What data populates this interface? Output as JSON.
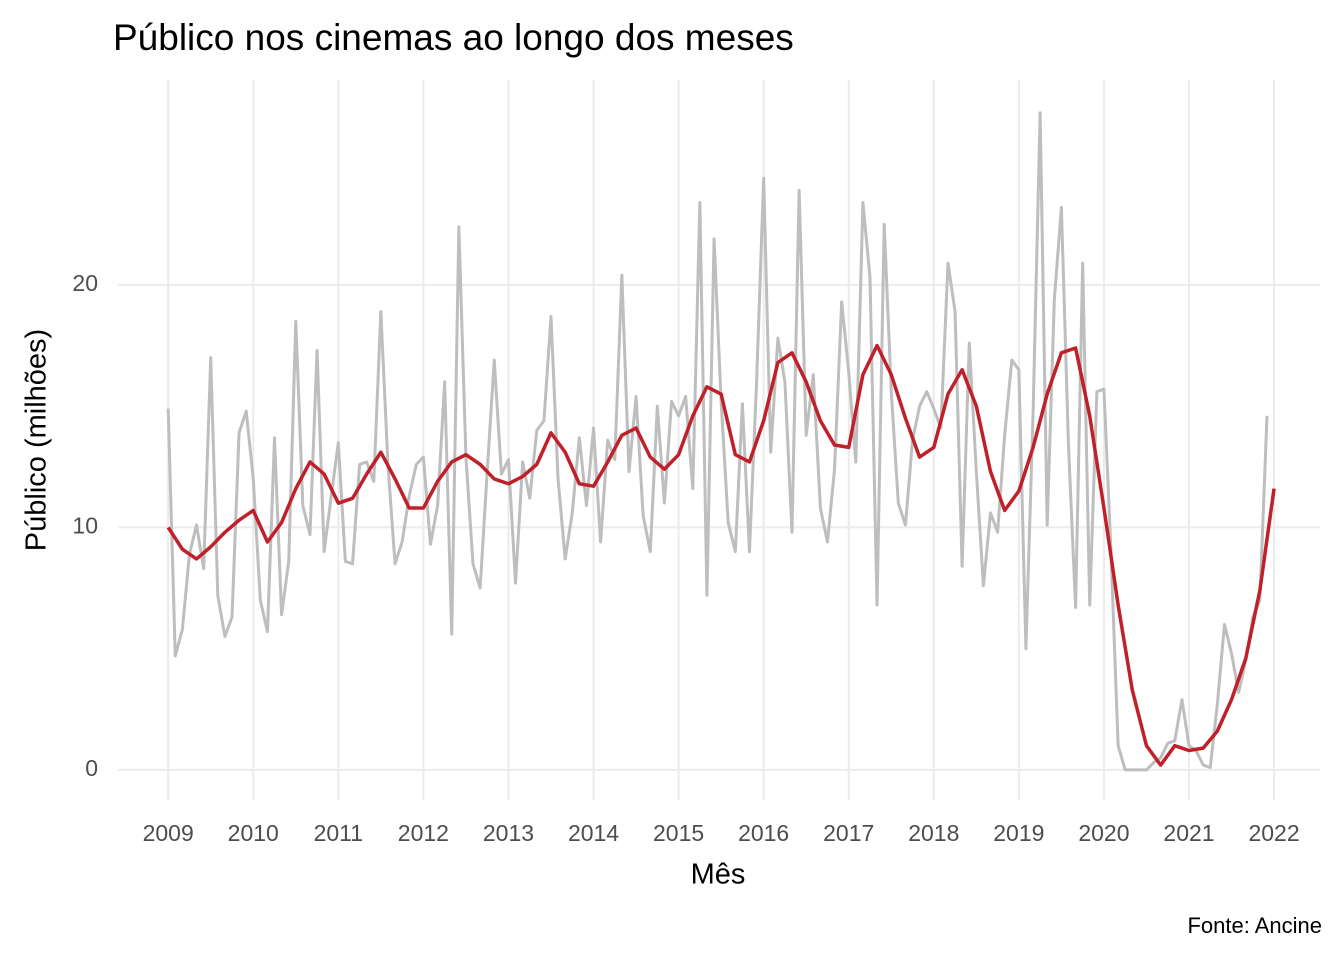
{
  "chart_data": {
    "type": "line",
    "title": "Público nos cinemas ao longo dos meses",
    "x_label": "Mês",
    "y_label": "Público (milhões)",
    "caption": "Fonte: Ancine",
    "xlim": [
      2008.41,
      2022.54
    ],
    "xticks": [
      2009,
      2010,
      2011,
      2012,
      2013,
      2014,
      2015,
      2016,
      2017,
      2018,
      2019,
      2020,
      2021,
      2022
    ],
    "ylim": [
      -1.24,
      28.45
    ],
    "yticks": [
      0,
      10,
      20
    ],
    "grid": true,
    "series": [
      {
        "color": "#bebebe",
        "width": 3,
        "x": [
          2009,
          2009.083,
          2009.167,
          2009.25,
          2009.333,
          2009.417,
          2009.5,
          2009.583,
          2009.667,
          2009.75,
          2009.833,
          2009.917,
          2010,
          2010.083,
          2010.167,
          2010.25,
          2010.333,
          2010.417,
          2010.5,
          2010.583,
          2010.667,
          2010.75,
          2010.833,
          2010.917,
          2011,
          2011.083,
          2011.167,
          2011.25,
          2011.333,
          2011.417,
          2011.5,
          2011.583,
          2011.667,
          2011.75,
          2011.833,
          2011.917,
          2012,
          2012.083,
          2012.167,
          2012.25,
          2012.333,
          2012.417,
          2012.5,
          2012.583,
          2012.667,
          2012.75,
          2012.833,
          2012.917,
          2013,
          2013.083,
          2013.167,
          2013.25,
          2013.333,
          2013.417,
          2013.5,
          2013.583,
          2013.667,
          2013.75,
          2013.833,
          2013.917,
          2014,
          2014.083,
          2014.167,
          2014.25,
          2014.333,
          2014.417,
          2014.5,
          2014.583,
          2014.667,
          2014.75,
          2014.833,
          2014.917,
          2015,
          2015.083,
          2015.167,
          2015.25,
          2015.333,
          2015.417,
          2015.5,
          2015.583,
          2015.667,
          2015.75,
          2015.833,
          2015.917,
          2016,
          2016.083,
          2016.167,
          2016.25,
          2016.333,
          2016.417,
          2016.5,
          2016.583,
          2016.667,
          2016.75,
          2016.833,
          2016.917,
          2017,
          2017.083,
          2017.167,
          2017.25,
          2017.333,
          2017.417,
          2017.5,
          2017.583,
          2017.667,
          2017.75,
          2017.833,
          2017.917,
          2018,
          2018.083,
          2018.167,
          2018.25,
          2018.333,
          2018.417,
          2018.5,
          2018.583,
          2018.667,
          2018.75,
          2018.833,
          2018.917,
          2019,
          2019.083,
          2019.167,
          2019.25,
          2019.333,
          2019.417,
          2019.5,
          2019.583,
          2019.667,
          2019.75,
          2019.833,
          2019.917,
          2020,
          2020.083,
          2020.167,
          2020.25,
          2020.333,
          2020.417,
          2020.5,
          2020.583,
          2020.667,
          2020.75,
          2020.833,
          2020.917,
          2021,
          2021.083,
          2021.167,
          2021.25,
          2021.333,
          2021.417,
          2021.5,
          2021.583,
          2021.667,
          2021.75,
          2021.833,
          2021.917
        ],
        "values": [
          14.9,
          4.7,
          5.8,
          8.9,
          10.1,
          8.3,
          17.0,
          7.2,
          5.5,
          6.3,
          13.9,
          14.8,
          12.0,
          7.0,
          5.7,
          13.7,
          6.4,
          8.6,
          18.5,
          10.9,
          9.7,
          17.3,
          9.0,
          11.3,
          13.5,
          8.6,
          8.5,
          12.6,
          12.7,
          11.9,
          18.9,
          12.6,
          8.5,
          9.4,
          11.3,
          12.6,
          12.9,
          9.3,
          10.9,
          16.0,
          5.6,
          22.4,
          12.9,
          8.5,
          7.5,
          12.3,
          16.9,
          12.2,
          12.8,
          7.7,
          12.7,
          11.2,
          14.0,
          14.4,
          18.7,
          12.0,
          8.7,
          10.6,
          13.7,
          10.9,
          14.1,
          9.4,
          13.6,
          12.8,
          20.4,
          12.3,
          15.4,
          10.5,
          9.0,
          15.0,
          11.0,
          15.2,
          14.6,
          15.4,
          11.6,
          23.4,
          7.2,
          21.9,
          15.2,
          10.2,
          9.0,
          15.1,
          9.0,
          16.0,
          24.4,
          13.1,
          17.8,
          16.0,
          9.8,
          23.9,
          13.8,
          16.3,
          10.8,
          9.4,
          12.4,
          19.3,
          16.4,
          12.7,
          23.4,
          20.3,
          6.8,
          22.5,
          15.6,
          11.0,
          10.1,
          13.6,
          15.0,
          15.6,
          14.9,
          14.1,
          20.9,
          18.9,
          8.4,
          17.6,
          12.3,
          7.6,
          10.6,
          9.8,
          13.8,
          16.9,
          16.5,
          5.0,
          14.7,
          27.1,
          10.1,
          19.4,
          23.2,
          13.4,
          6.7,
          20.9,
          6.8,
          15.6,
          15.7,
          9.0,
          1.0,
          0.0,
          0.0,
          0.0,
          0.0,
          0.3,
          0.5,
          1.1,
          1.2,
          2.9,
          1.0,
          0.8,
          0.2,
          0.1,
          2.7,
          6.0,
          4.8,
          3.2,
          4.5,
          6.3,
          7.0,
          14.6
        ]
      },
      {
        "color": "#c0202a",
        "width": 3.5,
        "x": [
          2009,
          2009.167,
          2009.333,
          2009.5,
          2009.667,
          2009.833,
          2010,
          2010.167,
          2010.333,
          2010.5,
          2010.667,
          2010.833,
          2011,
          2011.167,
          2011.333,
          2011.5,
          2011.667,
          2011.833,
          2012,
          2012.167,
          2012.333,
          2012.5,
          2012.667,
          2012.833,
          2013,
          2013.167,
          2013.333,
          2013.5,
          2013.667,
          2013.833,
          2014,
          2014.167,
          2014.333,
          2014.5,
          2014.667,
          2014.833,
          2015,
          2015.167,
          2015.333,
          2015.5,
          2015.667,
          2015.833,
          2016,
          2016.167,
          2016.333,
          2016.5,
          2016.667,
          2016.833,
          2017,
          2017.167,
          2017.333,
          2017.5,
          2017.667,
          2017.833,
          2018,
          2018.167,
          2018.333,
          2018.5,
          2018.667,
          2018.833,
          2019,
          2019.167,
          2019.333,
          2019.5,
          2019.667,
          2019.833,
          2020,
          2020.167,
          2020.333,
          2020.5,
          2020.667,
          2020.833,
          2021,
          2021.167,
          2021.333,
          2021.5,
          2021.667,
          2021.833,
          2022
        ],
        "values": [
          10.0,
          9.1,
          8.7,
          9.2,
          9.8,
          10.3,
          10.7,
          9.4,
          10.2,
          11.6,
          12.7,
          12.2,
          11.0,
          11.2,
          12.2,
          13.1,
          12.0,
          10.8,
          10.8,
          11.9,
          12.7,
          13.0,
          12.6,
          12.0,
          11.8,
          12.1,
          12.6,
          13.9,
          13.1,
          11.8,
          11.7,
          12.7,
          13.8,
          14.1,
          12.9,
          12.4,
          13.0,
          14.6,
          15.8,
          15.5,
          13.0,
          12.7,
          14.4,
          16.8,
          17.2,
          16.0,
          14.4,
          13.4,
          13.3,
          16.3,
          17.5,
          16.3,
          14.5,
          12.9,
          13.3,
          15.5,
          16.5,
          15.0,
          12.3,
          10.7,
          11.5,
          13.3,
          15.5,
          17.2,
          17.4,
          14.6,
          10.8,
          6.8,
          3.3,
          1.0,
          0.2,
          1.0,
          0.8,
          0.9,
          1.6,
          2.9,
          4.6,
          7.4,
          11.6
        ]
      }
    ]
  }
}
